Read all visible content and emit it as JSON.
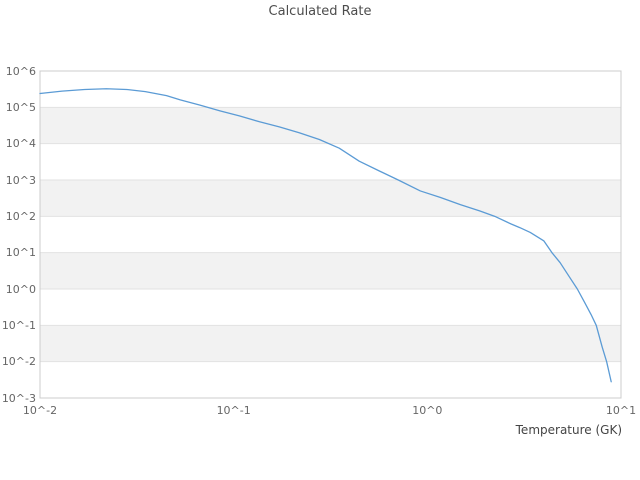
{
  "chart": {
    "title": "Calculated Rate",
    "x_axis": {
      "label": "Temperature (GK)",
      "tick_labels": [
        "10^-2",
        "10^-1",
        "10^0",
        "10^1"
      ],
      "tick_values": [
        0.01,
        0.1,
        1,
        10
      ]
    },
    "y_axis": {
      "tick_labels": [
        "10^6",
        "10^5",
        "10^4",
        "10^3",
        "10^2",
        "10^1",
        "10^0",
        "10^-1",
        "10^-2",
        "10^-3"
      ],
      "tick_values": [
        1000000,
        100000,
        10000,
        1000,
        100,
        10,
        1,
        0.1,
        0.01,
        0.001
      ]
    },
    "colors": {
      "line": "#5b9bd5",
      "band": "#f2f2f2",
      "grid": "#e2e2e2",
      "border": "#cccccc",
      "title_text": "#4d4d4d",
      "tick_text": "#666666",
      "axis_label_text": "#444444",
      "background": "#ffffff"
    }
  },
  "chart_data": {
    "type": "line",
    "title": "Calculated Rate",
    "xlabel": "Temperature (GK)",
    "ylabel": "",
    "xscale": "log",
    "yscale": "log",
    "xlim": [
      0.01,
      10
    ],
    "ylim": [
      0.001,
      1000000
    ],
    "grid": "horizontal-decades-with-alternating-bands",
    "legend": "none",
    "series": [
      {
        "name": "calculated-rate",
        "x": [
          0.01,
          0.013,
          0.017,
          0.022,
          0.028,
          0.035,
          0.045,
          0.053,
          0.067,
          0.085,
          0.107,
          0.136,
          0.172,
          0.218,
          0.277,
          0.351,
          0.445,
          0.562,
          0.708,
          0.92,
          1.17,
          1.48,
          1.87,
          2.23,
          2.7,
          3.0,
          3.4,
          4.0,
          4.4,
          4.85,
          5.4,
          5.95,
          6.5,
          7.0,
          7.45,
          8.0,
          8.43,
          8.9
        ],
        "y": [
          240000,
          280000,
          310000,
          325000,
          310000,
          270000,
          210000,
          160000,
          115000,
          80000,
          58000,
          40000,
          29000,
          20000,
          13000,
          7500,
          3300,
          1800,
          1000,
          500,
          330,
          210,
          140,
          100,
          62,
          49,
          36,
          21,
          10,
          5.3,
          2.2,
          1.0,
          0.42,
          0.2,
          0.1,
          0.025,
          0.01,
          0.0028
        ]
      }
    ]
  }
}
